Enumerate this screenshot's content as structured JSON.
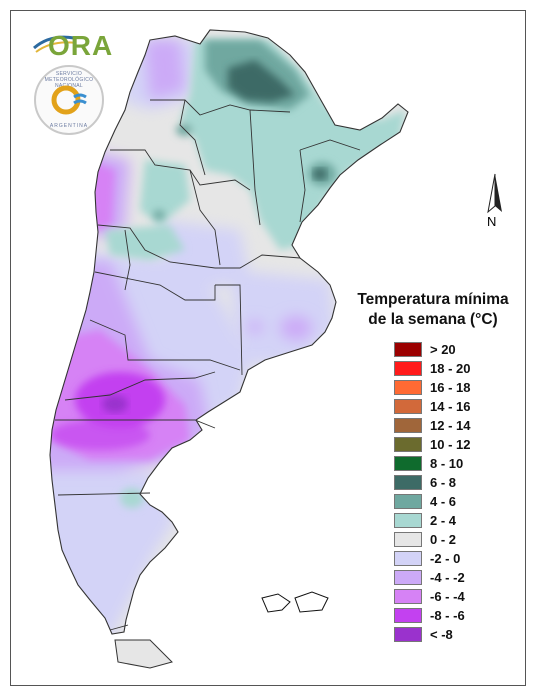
{
  "map": {
    "subject": "Argentina",
    "north_label": "N",
    "colors": {
      "cat_neg8": "#9a32cd",
      "cat_neg8_6": "#c341f0",
      "cat_neg6_4": "#d682f5",
      "cat_neg4_2": "#ccaaf7",
      "cat_neg2_0": "#d3d3f7",
      "cat_0_2": "#e6e6e6",
      "cat_2_4": "#a8d8d2",
      "cat_4_6": "#6fa8a0",
      "cat_6_8": "#3d6b66",
      "border": "#333333"
    }
  },
  "logos": {
    "ora": "ORA",
    "seal_top": "SERVICIO METEOROLÓGICO NACIONAL",
    "seal_bottom": "ARGENTINA"
  },
  "legend": {
    "title_line1": "Temperatura mínima",
    "title_line2": "de la semana (°C)",
    "items": [
      {
        "label": "> 20",
        "color": "#9b0000"
      },
      {
        "label": "18 - 20",
        "color": "#ff1a1a"
      },
      {
        "label": "16 - 18",
        "color": "#ff6a33"
      },
      {
        "label": "14 - 16",
        "color": "#d2693a"
      },
      {
        "label": "12 - 14",
        "color": "#a0663a"
      },
      {
        "label": "10 - 12",
        "color": "#6b6b2e"
      },
      {
        "label": "8 - 10",
        "color": "#0f6b2d"
      },
      {
        "label": "6 - 8",
        "color": "#3d6b66"
      },
      {
        "label": "4 - 6",
        "color": "#6fa8a0"
      },
      {
        "label": "2 - 4",
        "color": "#a8d8d2"
      },
      {
        "label": "0 - 2",
        "color": "#e6e6e6"
      },
      {
        "label": "-2 - 0",
        "color": "#d3d3f7"
      },
      {
        "label": "-4 - -2",
        "color": "#ccaaf7"
      },
      {
        "label": "-6 - -4",
        "color": "#d682f5"
      },
      {
        "label": "-8 - -6",
        "color": "#c341f0"
      },
      {
        "label": "< -8",
        "color": "#9a32cd"
      }
    ]
  }
}
